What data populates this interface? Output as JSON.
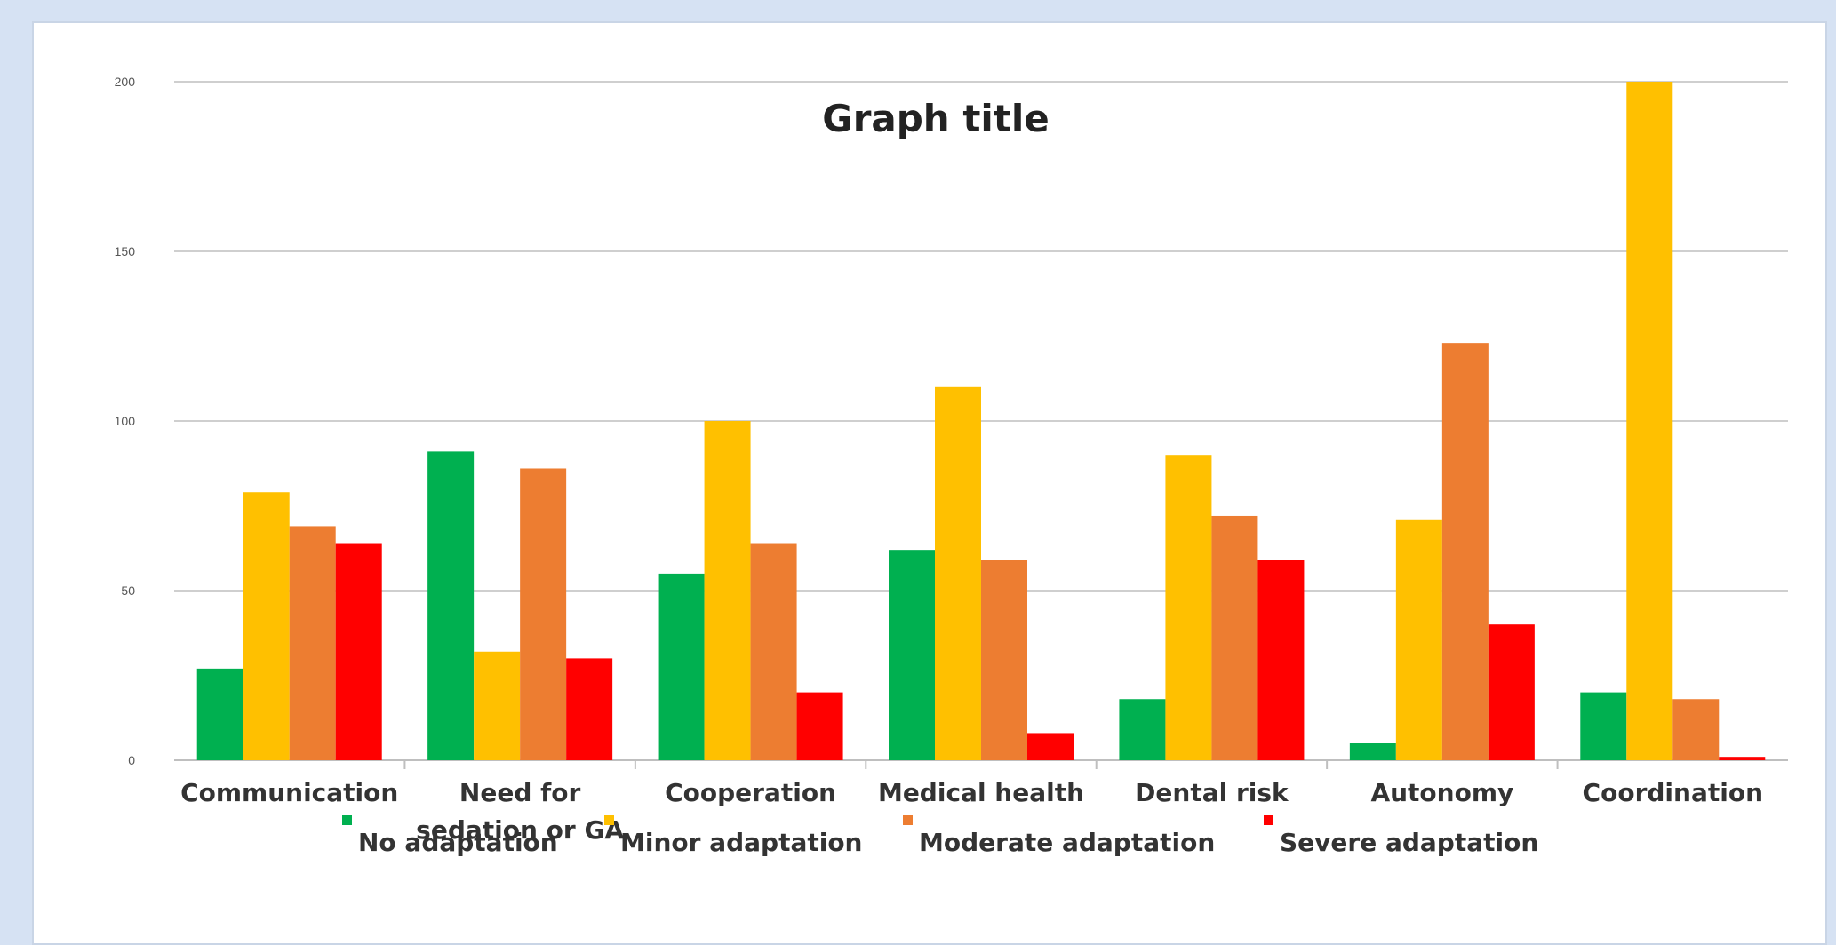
{
  "chart_data": {
    "type": "bar",
    "title": "Graph title",
    "categories": [
      "Communication",
      "Need for sedation or GA",
      "Cooperation",
      "Medical health",
      "Dental risk",
      "Autonomy",
      "Coordination"
    ],
    "series": [
      {
        "name": "No adaptation",
        "color": "#00b050",
        "values": [
          27,
          91,
          55,
          62,
          18,
          5,
          20
        ]
      },
      {
        "name": "Minor adaptation",
        "color": "#ffc000",
        "values": [
          79,
          32,
          100,
          110,
          90,
          71,
          200
        ]
      },
      {
        "name": "Moderate adaptation",
        "color": "#ed7d31",
        "values": [
          69,
          86,
          64,
          59,
          72,
          123,
          18
        ]
      },
      {
        "name": "Severe adaptation",
        "color": "#ff0000",
        "values": [
          64,
          30,
          20,
          8,
          59,
          40,
          1
        ]
      }
    ],
    "yticks": [
      "0",
      "50",
      "100",
      "150",
      "200"
    ],
    "ylim": [
      0,
      200
    ],
    "grid": true,
    "legend": "bottom"
  }
}
